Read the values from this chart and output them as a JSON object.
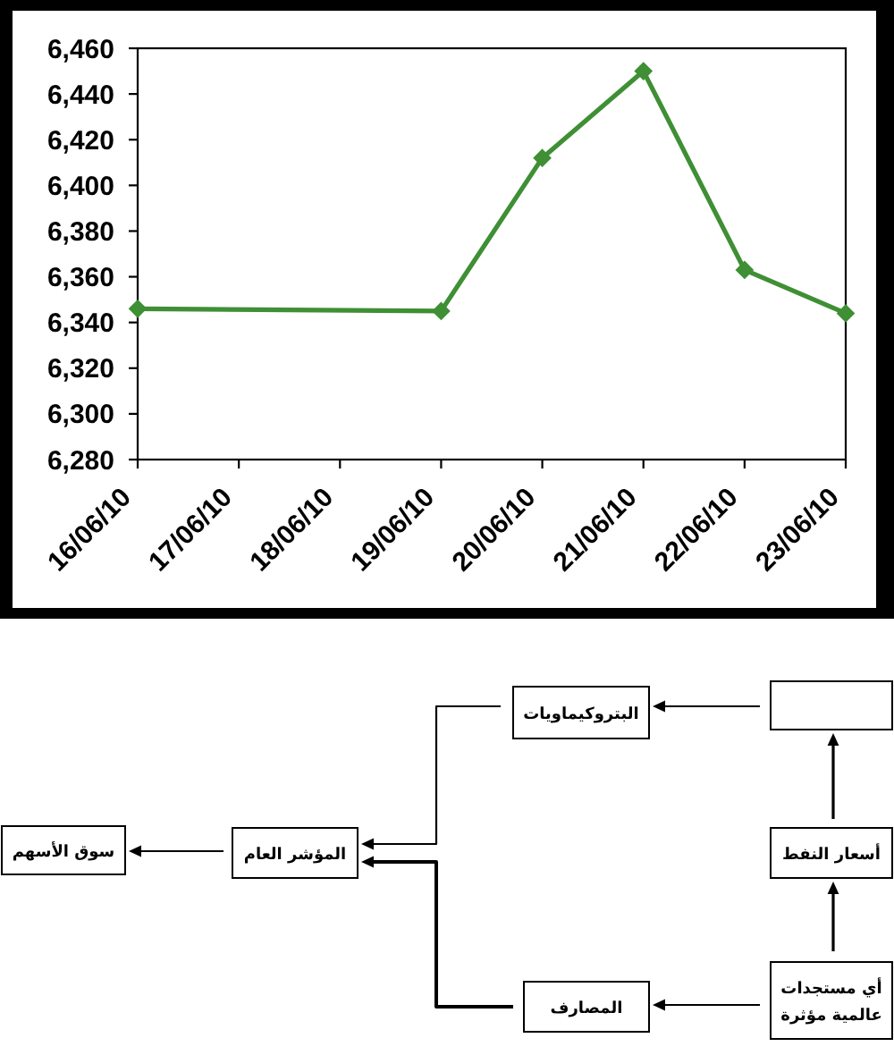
{
  "chart_data": [
    {
      "type": "line",
      "x": [
        "--06-16",
        "--06-19",
        "--06-20",
        "--06-21",
        "--06-22",
        "--06-23"
      ],
      "values": [
        6346,
        6345,
        6412,
        6450,
        6363,
        6344
      ],
      "color": "#3f8f35",
      "marker": "diamond",
      "line_style": "solid",
      "xlim": [
        "--06-16",
        "--06-23"
      ],
      "xticks": [
        {
          "value": "--06-16",
          "label": "16/06/10"
        },
        {
          "value": "--06-17",
          "label": "17/06/10"
        },
        {
          "value": "--06-18",
          "label": "18/06/10"
        },
        {
          "value": "--06-19",
          "label": "19/06/10"
        },
        {
          "value": "--06-20",
          "label": "20/06/10"
        },
        {
          "value": "--06-21",
          "label": "21/06/10"
        },
        {
          "value": "--06-22",
          "label": "22/06/10"
        },
        {
          "value": "--06-23",
          "label": "23/06/10"
        }
      ],
      "ylim": [
        6280,
        6460
      ],
      "yticks": [
        {
          "value": 6280,
          "label": "6,280"
        },
        {
          "value": 6300,
          "label": "6,300"
        },
        {
          "value": 6320,
          "label": "6,320"
        },
        {
          "value": 6340,
          "label": "6,340"
        },
        {
          "value": 6360,
          "label": "6,360"
        },
        {
          "value": 6380,
          "label": "6,380"
        },
        {
          "value": 6400,
          "label": "6,400"
        },
        {
          "value": 6420,
          "label": "6,420"
        },
        {
          "value": 6440,
          "label": "6,440"
        },
        {
          "value": 6460,
          "label": "6,460"
        }
      ]
    },
    {
      "type": "other",
      "annotations": [
        "البتروكيماويات",
        "أسعار النفط",
        "المؤشر العام",
        "سوق الأسهم",
        "أي مستجدات عالمية مؤثرة",
        "المصارف"
      ]
    }
  ]
}
